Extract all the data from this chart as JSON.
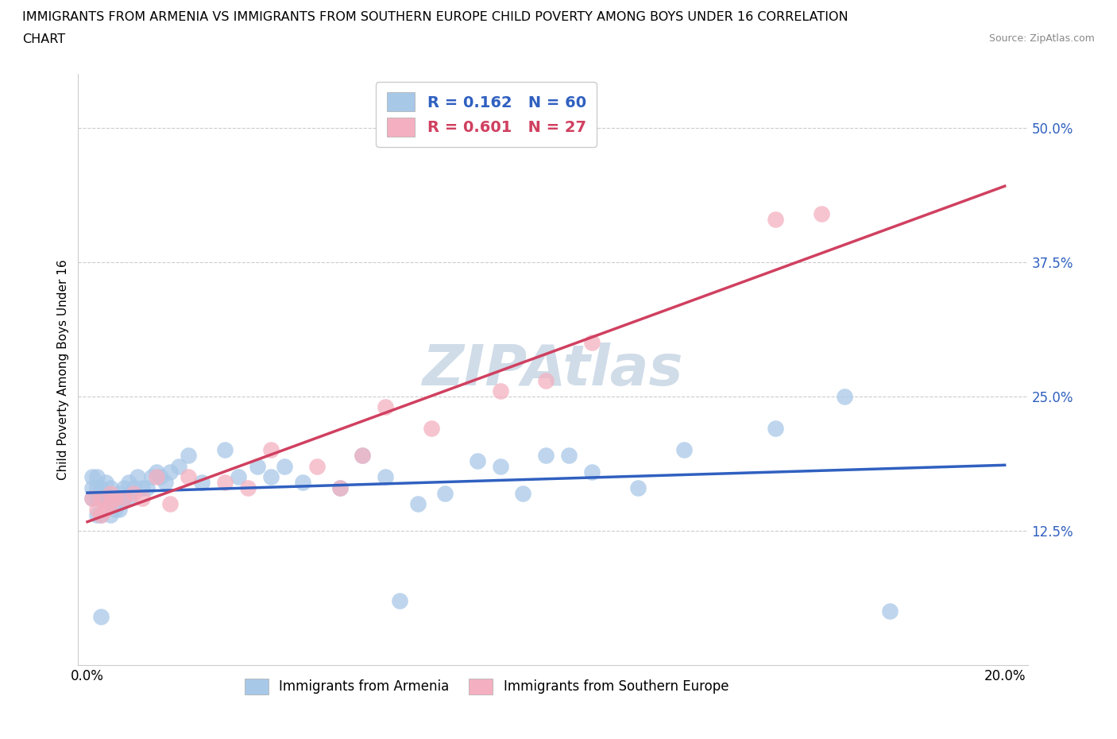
{
  "title_line1": "IMMIGRANTS FROM ARMENIA VS IMMIGRANTS FROM SOUTHERN EUROPE CHILD POVERTY AMONG BOYS UNDER 16 CORRELATION",
  "title_line2": "CHART",
  "source_text": "Source: ZipAtlas.com",
  "ylabel": "Child Poverty Among Boys Under 16",
  "legend_label1": "Immigrants from Armenia",
  "legend_label2": "Immigrants from Southern Europe",
  "R1": 0.162,
  "N1": 60,
  "R2": 0.601,
  "N2": 27,
  "xlim": [
    -0.002,
    0.205
  ],
  "ylim": [
    0.0,
    0.55
  ],
  "xticks": [
    0.0,
    0.05,
    0.1,
    0.15,
    0.2
  ],
  "xticklabels": [
    "0.0%",
    "",
    "",
    "",
    "20.0%"
  ],
  "ytick_vals": [
    0.125,
    0.25,
    0.375,
    0.5
  ],
  "ytick_labels": [
    "12.5%",
    "25.0%",
    "37.5%",
    "50.0%"
  ],
  "color1": "#a8c8e8",
  "color2": "#f4b0c0",
  "trendline1_color": "#3060c0",
  "trendline2_color": "#d04060",
  "watermark_color": "#d0dce8",
  "scatter1_x": [
    0.001,
    0.001,
    0.001,
    0.002,
    0.002,
    0.002,
    0.002,
    0.003,
    0.003,
    0.003,
    0.003,
    0.004,
    0.004,
    0.004,
    0.005,
    0.005,
    0.005,
    0.006,
    0.006,
    0.007,
    0.007,
    0.008,
    0.008,
    0.009,
    0.009,
    0.01,
    0.011,
    0.012,
    0.013,
    0.014,
    0.015,
    0.016,
    0.017,
    0.018,
    0.02,
    0.022,
    0.025,
    0.03,
    0.033,
    0.037,
    0.04,
    0.043,
    0.047,
    0.055,
    0.06,
    0.065,
    0.068,
    0.072,
    0.078,
    0.085,
    0.09,
    0.095,
    0.1,
    0.105,
    0.11,
    0.12,
    0.13,
    0.15,
    0.165,
    0.175
  ],
  "scatter1_y": [
    0.155,
    0.165,
    0.175,
    0.14,
    0.155,
    0.165,
    0.175,
    0.14,
    0.155,
    0.165,
    0.045,
    0.15,
    0.16,
    0.17,
    0.14,
    0.155,
    0.165,
    0.155,
    0.145,
    0.145,
    0.16,
    0.155,
    0.165,
    0.155,
    0.17,
    0.165,
    0.175,
    0.165,
    0.165,
    0.175,
    0.18,
    0.175,
    0.17,
    0.18,
    0.185,
    0.195,
    0.17,
    0.2,
    0.175,
    0.185,
    0.175,
    0.185,
    0.17,
    0.165,
    0.195,
    0.175,
    0.06,
    0.15,
    0.16,
    0.19,
    0.185,
    0.16,
    0.195,
    0.195,
    0.18,
    0.165,
    0.2,
    0.22,
    0.25,
    0.05
  ],
  "scatter2_x": [
    0.001,
    0.002,
    0.003,
    0.003,
    0.004,
    0.005,
    0.005,
    0.006,
    0.008,
    0.01,
    0.012,
    0.015,
    0.018,
    0.022,
    0.03,
    0.035,
    0.04,
    0.05,
    0.055,
    0.06,
    0.065,
    0.075,
    0.09,
    0.1,
    0.11,
    0.15,
    0.16
  ],
  "scatter2_y": [
    0.155,
    0.145,
    0.14,
    0.155,
    0.145,
    0.15,
    0.16,
    0.155,
    0.155,
    0.16,
    0.155,
    0.175,
    0.15,
    0.175,
    0.17,
    0.165,
    0.2,
    0.185,
    0.165,
    0.195,
    0.24,
    0.22,
    0.255,
    0.265,
    0.3,
    0.415,
    0.42
  ]
}
